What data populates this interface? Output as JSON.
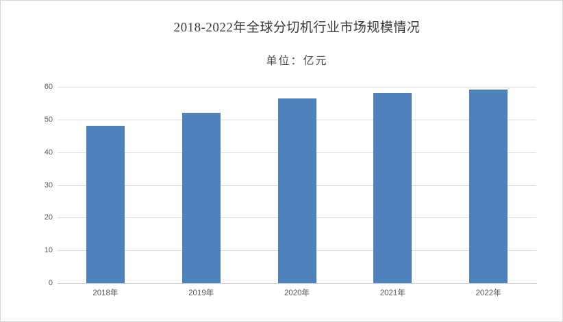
{
  "chart": {
    "title": "2018-2022年全球分切机行业市场规模情况",
    "unit_label": "单位：亿元"
  },
  "chart_data": {
    "type": "bar",
    "title": "2018-2022年全球分切机行业市场规模情况",
    "subtitle": "单位：亿元",
    "categories": [
      "2018年",
      "2019年",
      "2020年",
      "2021年",
      "2022年"
    ],
    "values": [
      48,
      52,
      56.5,
      58.1,
      59.2
    ],
    "xlabel": "",
    "ylabel": "",
    "ylim": [
      0,
      60
    ],
    "yticks": [
      0,
      10,
      20,
      30,
      40,
      50,
      60
    ],
    "grid": true,
    "legend": false,
    "colors": {
      "bar": "#4F81BD",
      "gridline": "#DCDCDC",
      "axis_line": "#C9C9C9",
      "tick_label": "#595959",
      "title": "#3B3B3B",
      "background": "#FFFFFF",
      "frame_border": "#D5D5D5"
    }
  }
}
